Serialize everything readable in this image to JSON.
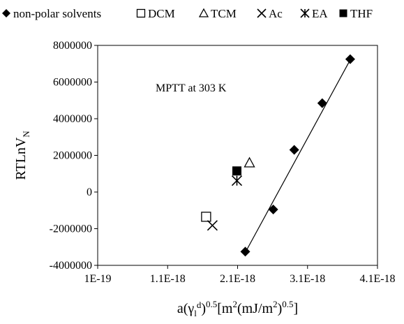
{
  "chart_data": {
    "type": "scatter",
    "xlim": [
      1e-19,
      4.1e-18
    ],
    "ylim": [
      -4000000,
      8000000
    ],
    "x_ticks": [
      1e-19,
      1.1e-18,
      2.1e-18,
      3.1e-18,
      4.1e-18
    ],
    "x_tick_labels": [
      "1E-19",
      "1.1E-18",
      "2.1E-18",
      "3.1E-18",
      "4.1E-18"
    ],
    "y_ticks": [
      -4000000,
      -2000000,
      0,
      2000000,
      4000000,
      6000000,
      8000000
    ],
    "y_tick_labels": [
      "-4000000",
      "-2000000",
      "0",
      "2000000",
      "4000000",
      "6000000",
      "8000000"
    ],
    "grid": false,
    "legend_position": "top",
    "xlabel": {
      "base": "a(γ",
      "sub1": "l",
      "sup1": "d",
      "rest1": ")",
      "sup2": "0.5",
      "rest2": "[m",
      "sup3": "2",
      "rest3": "(mJ/m",
      "sup4": "2",
      "rest4": ")",
      "sup5": "0.5",
      "rest5": "]"
    },
    "ylabel": {
      "main": "RTLnV",
      "sub": "N"
    },
    "annotation": "MPTT at 303 K",
    "series": [
      {
        "name": "non-polar solvents",
        "marker": "diamond-filled",
        "points": [
          [
            2.21e-18,
            -3250000
          ],
          [
            2.61e-18,
            -950000
          ],
          [
            2.91e-18,
            2300000
          ],
          [
            3.31e-18,
            4850000
          ],
          [
            3.71e-18,
            7250000
          ]
        ]
      },
      {
        "name": "DCM",
        "marker": "square-open",
        "points": [
          [
            1.65e-18,
            -1350000
          ]
        ]
      },
      {
        "name": "TCM",
        "marker": "triangle-open",
        "points": [
          [
            2.27e-18,
            1600000
          ]
        ]
      },
      {
        "name": "Ac",
        "marker": "x",
        "points": [
          [
            1.74e-18,
            -1820000
          ]
        ]
      },
      {
        "name": "EA",
        "marker": "asterisk",
        "points": [
          [
            2.09e-18,
            620000
          ]
        ]
      },
      {
        "name": "THF",
        "marker": "square-filled",
        "points": [
          [
            2.09e-18,
            1150000
          ]
        ]
      }
    ],
    "trendline": {
      "series": "non-polar solvents",
      "from": [
        2.21e-18,
        -3300000
      ],
      "to": [
        3.73e-18,
        7350000
      ]
    }
  }
}
